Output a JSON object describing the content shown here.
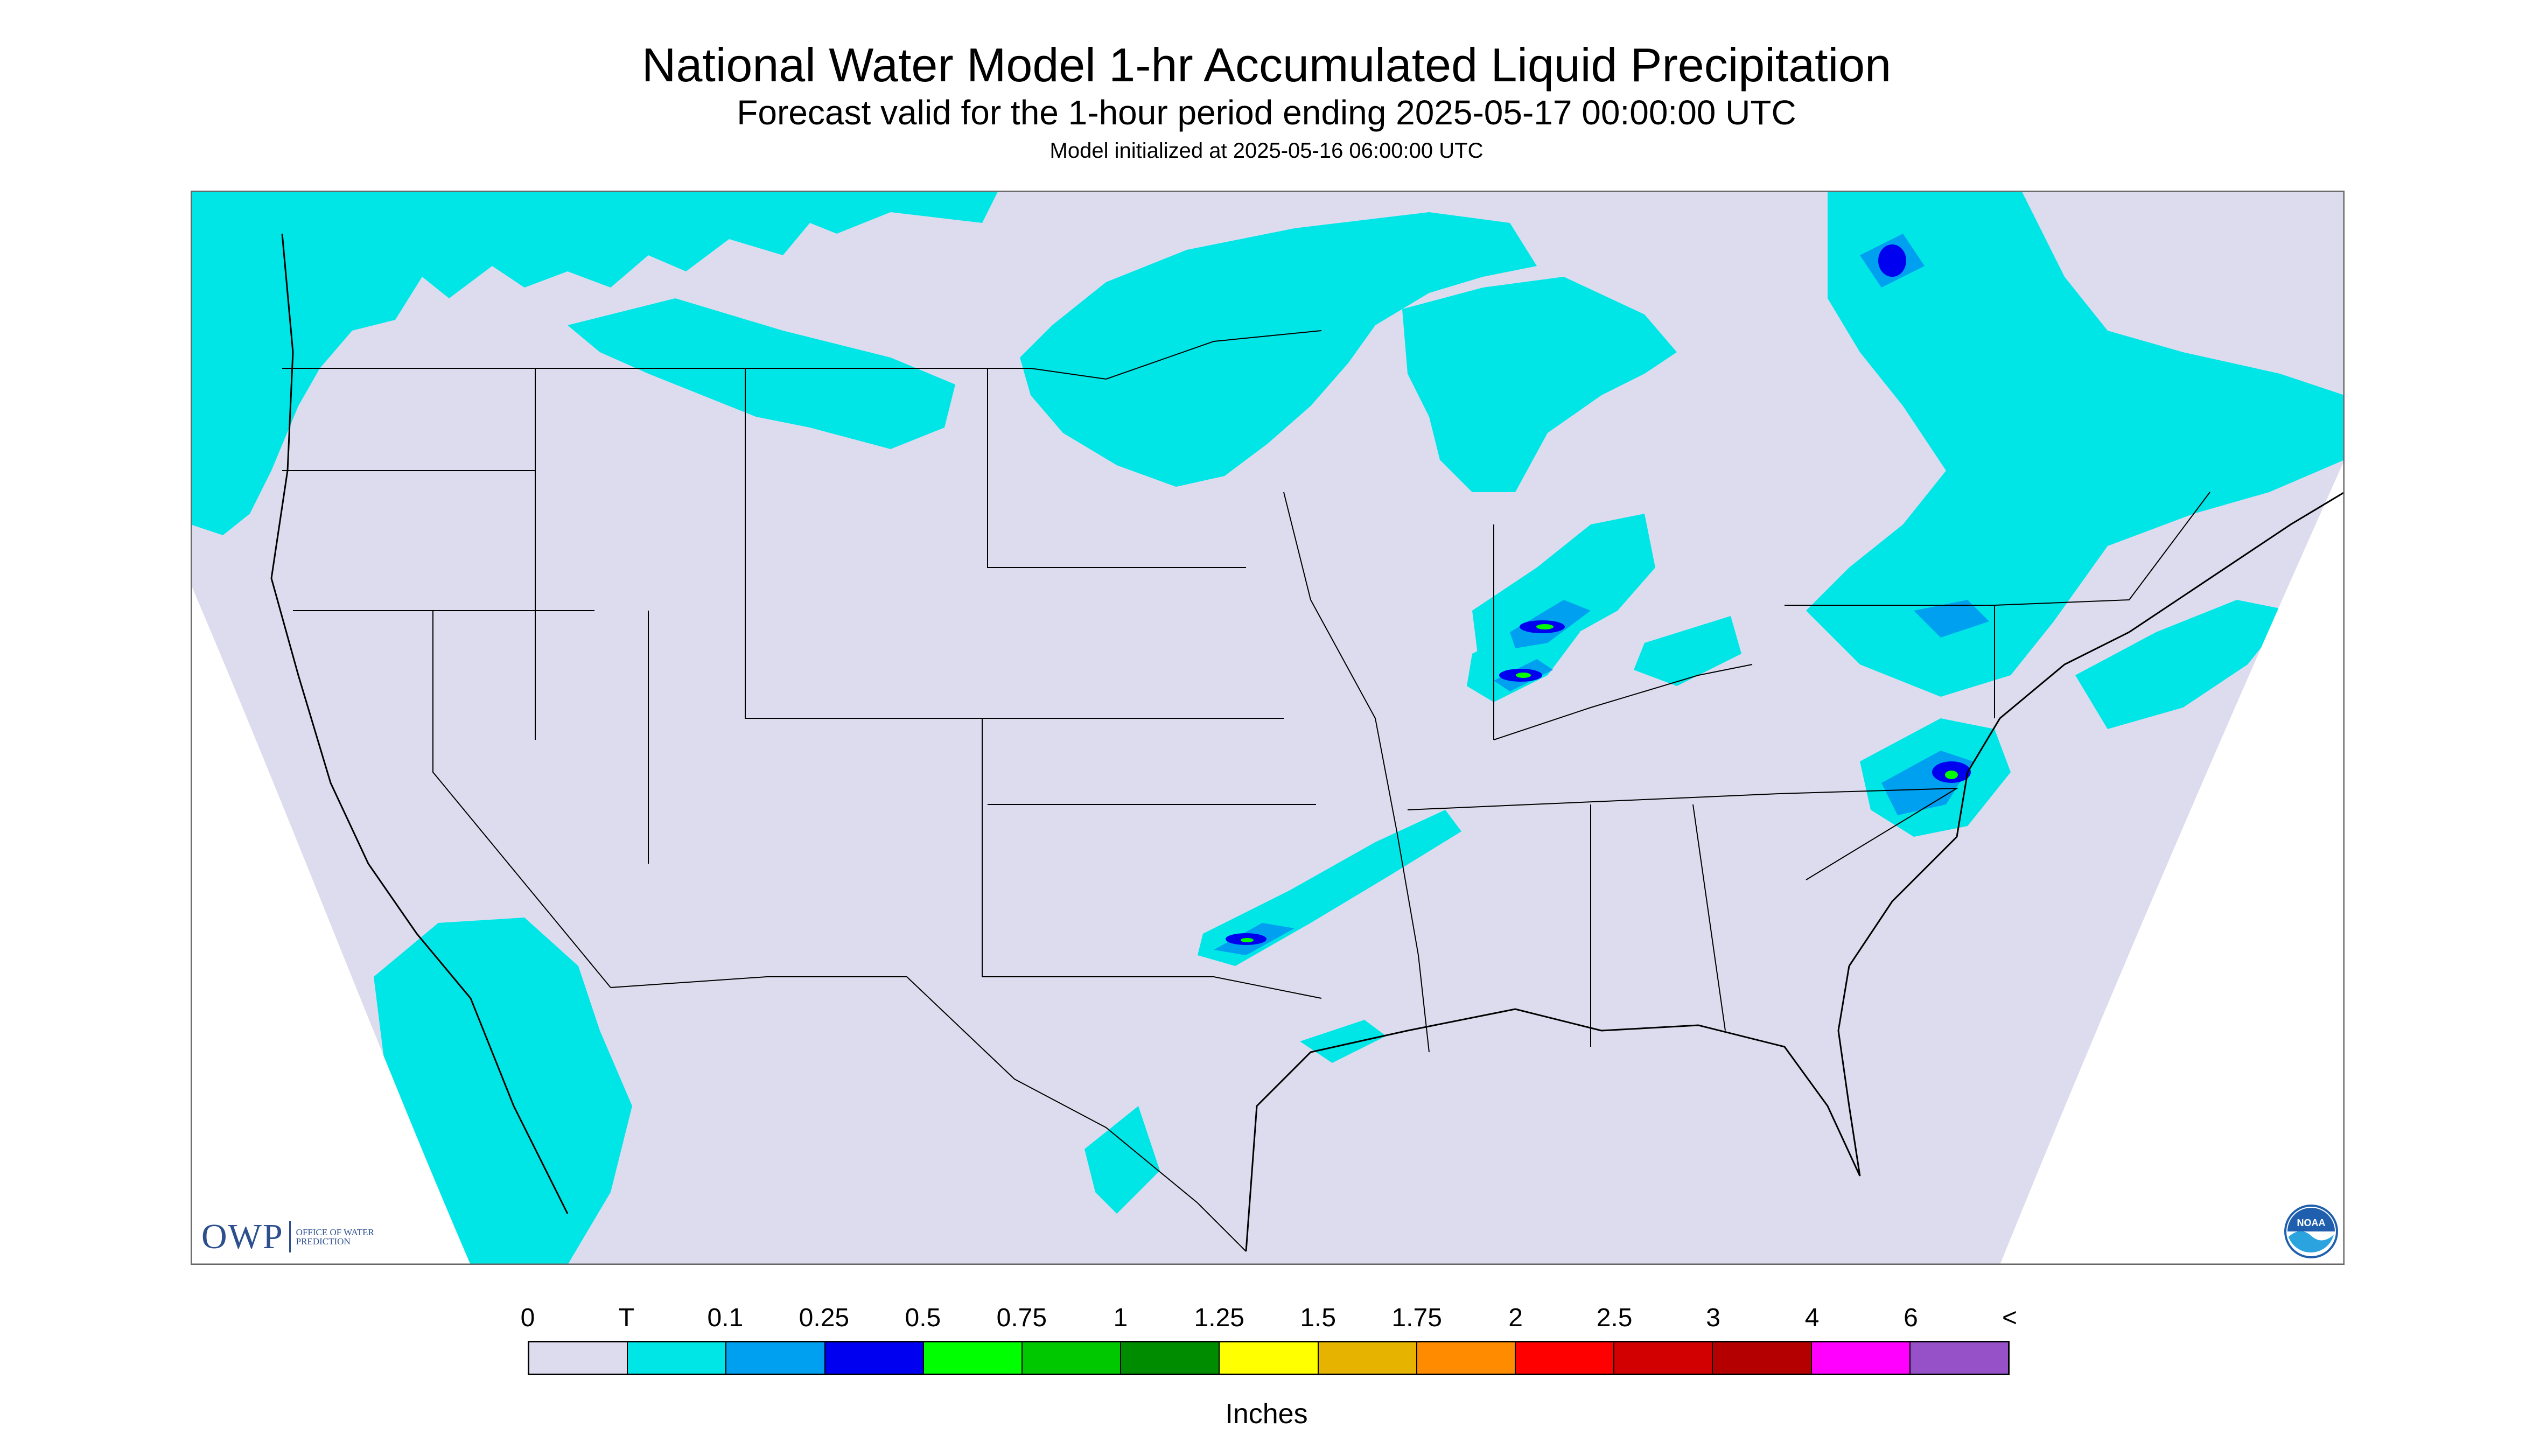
{
  "header": {
    "title": "National Water Model 1-hr Accumulated Liquid Precipitation",
    "subtitle": "Forecast valid for the 1-hour period ending 2025-05-17 00:00:00 UTC",
    "init": "Model initialized at 2025-05-16 06:00:00 UTC"
  },
  "legend": {
    "units": "Inches",
    "ticks": [
      "0",
      "T",
      "0.1",
      "0.25",
      "0.5",
      "0.75",
      "1",
      "1.25",
      "1.5",
      "1.75",
      "2",
      "2.5",
      "3",
      "4",
      "6",
      "<"
    ],
    "colors": [
      "#dcdcee",
      "#00e6e6",
      "#00a0f0",
      "#0000f0",
      "#00ff00",
      "#00c800",
      "#008c00",
      "#ffff00",
      "#e6b400",
      "#ff8c00",
      "#ff0000",
      "#d20000",
      "#b40000",
      "#ff00ff",
      "#9650c8"
    ]
  },
  "map": {
    "background_color": "#dcdcee",
    "outside_domain_color": "#ffffff",
    "trace_color": "#00e6e6",
    "color_0_1": "#00a0f0",
    "color_0_25": "#0000f0",
    "color_0_5": "#00ff00",
    "color_0_75": "#00c800"
  },
  "logos": {
    "owp_letters": "OWP",
    "owp_name": "Office of Water Prediction",
    "noaa_text": "NOAA"
  }
}
